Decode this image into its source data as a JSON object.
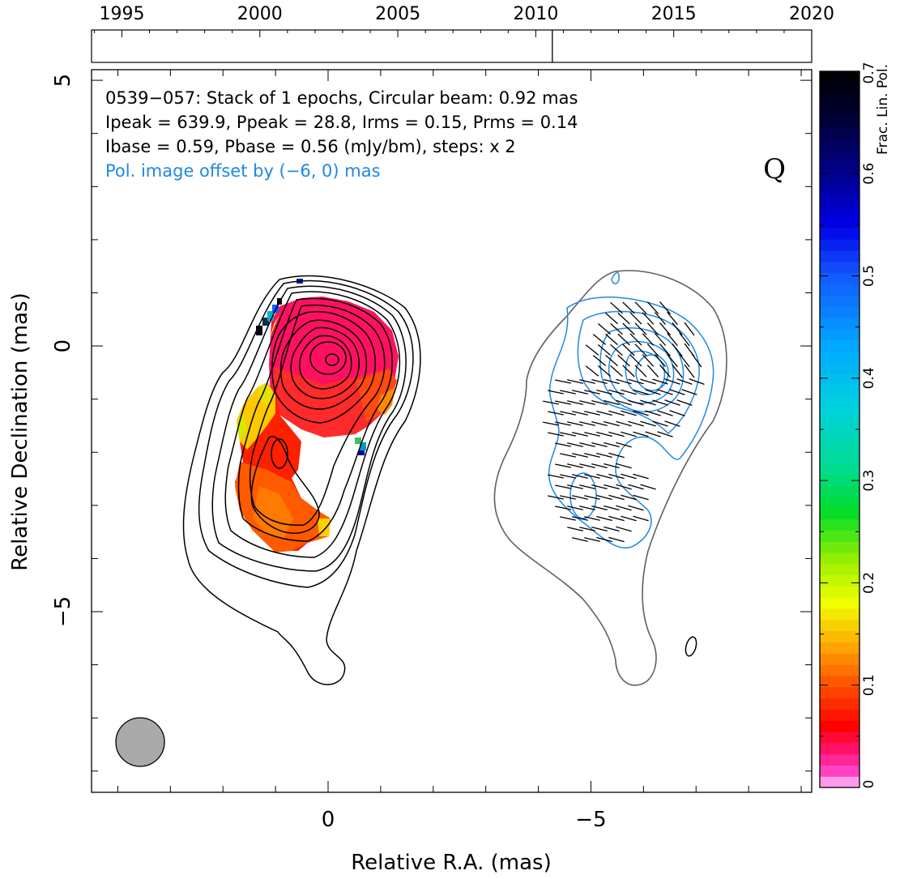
{
  "chart_data": {
    "type": "image",
    "xlabel": "Relative R.A. (mas)",
    "ylabel": "Relative Declination (mas)",
    "xlim": [
      4.5,
      -9.2
    ],
    "ylim": [
      -8.4,
      5.2
    ],
    "x_tick_labels": [
      "0",
      "−5"
    ],
    "x_tick_values": [
      0,
      -5
    ],
    "y_tick_labels": [
      "5",
      "0",
      "−5"
    ],
    "y_tick_values": [
      5,
      0,
      -5
    ],
    "annotation_lines": [
      "0539−057: Stack of 1 epochs, Circular beam: 0.92 mas",
      "Ipeak = 639.9, Ppeak = 28.8, Irms = 0.15, Prms = 0.14",
      "Ibase = 0.59, Pbase = 0.56 (mJy/bm), steps: x 2"
    ],
    "offset_note": "Pol. image offset by (−6, 0) mas",
    "stokes_label": "Q",
    "beam_diameter_mas": 0.92,
    "timeline": {
      "year_labels": [
        "1995",
        "2000",
        "2005",
        "2010",
        "2015",
        "2020"
      ],
      "year_values": [
        1995,
        2000,
        2005,
        2010,
        2015,
        2020
      ],
      "range": [
        1993.9,
        2020
      ],
      "epoch_marks": [
        2010.6
      ]
    },
    "colorbar": {
      "label": "Frac. Lin. Pol.",
      "range": [
        0,
        0.7
      ],
      "tick_labels": [
        "0",
        "0.1",
        "0.2",
        "0.3",
        "0.4",
        "0.5",
        "0.6",
        "0.7"
      ],
      "tick_values": [
        0,
        0.1,
        0.2,
        0.3,
        0.4,
        0.5,
        0.6,
        0.7
      ]
    },
    "colors": {
      "stokes_i_contours": "#000000",
      "pol_contours": "#1e88e5",
      "pol_outline": "#606060",
      "beam_fill": "#aaaaaa",
      "offset_note": "#1e88e5"
    }
  }
}
